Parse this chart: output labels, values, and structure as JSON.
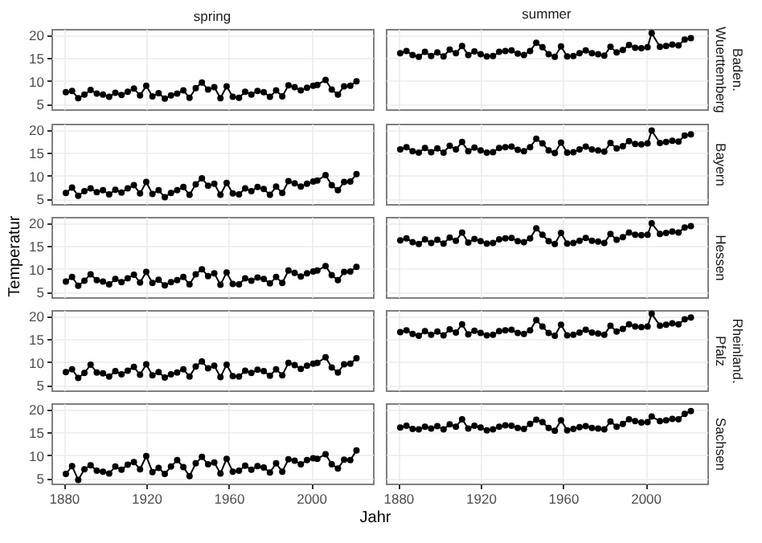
{
  "chart_data": [
    {
      "type": "line",
      "title": "spring",
      "color": "#000000",
      "marker": "circle",
      "grid": true,
      "tick_labels": "y",
      "xlim": [
        1874,
        2030
      ],
      "ylim": [
        3.8,
        21.3
      ],
      "xticks": [
        1880,
        1920,
        1960,
        2000
      ],
      "yticks": [
        5,
        10,
        15,
        20
      ],
      "x": [
        1881,
        1884,
        1887,
        1890,
        1893,
        1896,
        1899,
        1902,
        1905,
        1908,
        1911,
        1914,
        1917,
        1920,
        1923,
        1926,
        1929,
        1932,
        1935,
        1938,
        1941,
        1944,
        1947,
        1950,
        1953,
        1956,
        1959,
        1962,
        1965,
        1968,
        1971,
        1974,
        1977,
        1980,
        1983,
        1986,
        1989,
        1992,
        1995,
        1998,
        2001,
        2003,
        2007,
        2010,
        2013,
        2016,
        2019,
        2022
      ],
      "values": [
        7.5,
        7.8,
        6.2,
        7.0,
        8.0,
        7.2,
        7.0,
        6.5,
        7.4,
        6.9,
        7.6,
        8.3,
        6.8,
        8.9,
        6.6,
        7.3,
        6.1,
        6.8,
        7.2,
        7.9,
        6.3,
        8.4,
        9.6,
        8.1,
        8.6,
        6.2,
        8.8,
        6.5,
        6.3,
        7.6,
        7.0,
        7.8,
        7.5,
        6.5,
        7.9,
        6.6,
        9.0,
        8.6,
        7.9,
        8.5,
        8.9,
        9.1,
        10.2,
        8.1,
        7.0,
        8.8,
        8.9,
        9.9
      ]
    },
    {
      "type": "line",
      "title": "summer",
      "y2label": "Baden.Wuerttemberg",
      "color": "#000000",
      "marker": "circle",
      "grid": true,
      "tick_labels": false,
      "xlim": [
        1874,
        2030
      ],
      "ylim": [
        3.8,
        21.3
      ],
      "xticks": [
        1880,
        1920,
        1960,
        2000
      ],
      "yticks": [
        5,
        10,
        15,
        20
      ],
      "x": [
        1881,
        1884,
        1887,
        1890,
        1893,
        1896,
        1899,
        1902,
        1905,
        1908,
        1911,
        1914,
        1917,
        1920,
        1923,
        1926,
        1929,
        1932,
        1935,
        1938,
        1941,
        1944,
        1947,
        1950,
        1953,
        1956,
        1959,
        1962,
        1965,
        1968,
        1971,
        1974,
        1977,
        1980,
        1983,
        1986,
        1989,
        1992,
        1995,
        1998,
        2001,
        2003,
        2007,
        2010,
        2013,
        2016,
        2019,
        2022
      ],
      "values": [
        16.0,
        16.5,
        15.6,
        15.2,
        16.3,
        15.4,
        16.2,
        15.3,
        16.8,
        16.0,
        17.6,
        15.6,
        16.4,
        15.8,
        15.3,
        15.4,
        16.3,
        16.5,
        16.6,
        15.9,
        15.6,
        16.5,
        18.3,
        17.3,
        15.8,
        15.2,
        17.5,
        15.3,
        15.4,
        16.0,
        16.6,
        16.0,
        15.8,
        15.5,
        17.4,
        16.2,
        16.7,
        17.8,
        17.2,
        17.1,
        17.3,
        20.4,
        17.4,
        17.6,
        17.9,
        17.7,
        19.0,
        19.3
      ]
    },
    {
      "type": "line",
      "color": "#000000",
      "marker": "circle",
      "grid": true,
      "tick_labels": "y",
      "xlim": [
        1874,
        2030
      ],
      "ylim": [
        3.8,
        21.3
      ],
      "xticks": [
        1880,
        1920,
        1960,
        2000
      ],
      "yticks": [
        5,
        10,
        15,
        20
      ],
      "x": [
        1881,
        1884,
        1887,
        1890,
        1893,
        1896,
        1899,
        1902,
        1905,
        1908,
        1911,
        1914,
        1917,
        1920,
        1923,
        1926,
        1929,
        1932,
        1935,
        1938,
        1941,
        1944,
        1947,
        1950,
        1953,
        1956,
        1959,
        1962,
        1965,
        1968,
        1971,
        1974,
        1977,
        1980,
        1983,
        1986,
        1989,
        1992,
        1995,
        1998,
        2001,
        2003,
        2007,
        2010,
        2013,
        2016,
        2019,
        2022
      ],
      "values": [
        6.2,
        7.4,
        5.6,
        6.6,
        7.2,
        6.4,
        6.8,
        5.9,
        6.9,
        6.3,
        7.2,
        7.9,
        6.1,
        8.6,
        6.0,
        6.8,
        5.3,
        6.2,
        6.8,
        7.5,
        5.8,
        8.1,
        9.4,
        7.8,
        8.2,
        5.8,
        8.4,
        6.1,
        5.9,
        7.2,
        6.6,
        7.5,
        7.1,
        5.8,
        7.6,
        6.2,
        8.8,
        8.3,
        7.6,
        8.2,
        8.7,
        8.9,
        10.1,
        7.9,
        6.8,
        8.6,
        8.7,
        10.3
      ]
    },
    {
      "type": "line",
      "y2label": "Bayern",
      "color": "#000000",
      "marker": "circle",
      "grid": true,
      "tick_labels": false,
      "xlim": [
        1874,
        2030
      ],
      "ylim": [
        3.8,
        21.3
      ],
      "xticks": [
        1880,
        1920,
        1960,
        2000
      ],
      "yticks": [
        5,
        10,
        15,
        20
      ],
      "x": [
        1881,
        1884,
        1887,
        1890,
        1893,
        1896,
        1899,
        1902,
        1905,
        1908,
        1911,
        1914,
        1917,
        1920,
        1923,
        1926,
        1929,
        1932,
        1935,
        1938,
        1941,
        1944,
        1947,
        1950,
        1953,
        1956,
        1959,
        1962,
        1965,
        1968,
        1971,
        1974,
        1977,
        1980,
        1983,
        1986,
        1989,
        1992,
        1995,
        1998,
        2001,
        2003,
        2007,
        2010,
        2013,
        2016,
        2019,
        2022
      ],
      "values": [
        15.7,
        16.2,
        15.3,
        15.0,
        16.0,
        15.1,
        15.9,
        15.0,
        16.5,
        15.7,
        17.3,
        15.3,
        16.1,
        15.5,
        15.0,
        15.1,
        16.0,
        16.2,
        16.3,
        15.6,
        15.3,
        16.2,
        18.0,
        17.0,
        15.5,
        14.9,
        17.2,
        15.0,
        15.1,
        15.7,
        16.3,
        15.7,
        15.5,
        15.2,
        17.1,
        15.9,
        16.4,
        17.5,
        16.9,
        16.8,
        17.0,
        19.8,
        17.1,
        17.3,
        17.6,
        17.4,
        18.7,
        19.0
      ]
    },
    {
      "type": "line",
      "ylabel": "Temperatur",
      "color": "#000000",
      "marker": "circle",
      "grid": true,
      "tick_labels": "y",
      "xlim": [
        1874,
        2030
      ],
      "ylim": [
        3.8,
        21.3
      ],
      "xticks": [
        1880,
        1920,
        1960,
        2000
      ],
      "yticks": [
        5,
        10,
        15,
        20
      ],
      "x": [
        1881,
        1884,
        1887,
        1890,
        1893,
        1896,
        1899,
        1902,
        1905,
        1908,
        1911,
        1914,
        1917,
        1920,
        1923,
        1926,
        1929,
        1932,
        1935,
        1938,
        1941,
        1944,
        1947,
        1950,
        1953,
        1956,
        1959,
        1962,
        1965,
        1968,
        1971,
        1974,
        1977,
        1980,
        1983,
        1986,
        1989,
        1992,
        1995,
        1998,
        2001,
        2003,
        2007,
        2010,
        2013,
        2016,
        2019,
        2022
      ],
      "values": [
        7.2,
        8.2,
        6.3,
        7.4,
        8.8,
        7.5,
        7.2,
        6.6,
        7.8,
        7.1,
        7.9,
        8.7,
        7.0,
        9.3,
        6.9,
        7.6,
        6.4,
        7.1,
        7.5,
        8.2,
        6.6,
        8.8,
        9.9,
        8.4,
        9.0,
        6.5,
        9.2,
        6.7,
        6.6,
        7.9,
        7.4,
        8.1,
        7.8,
        6.8,
        8.2,
        6.9,
        9.6,
        9.1,
        8.3,
        9.0,
        9.4,
        9.6,
        10.6,
        8.6,
        7.5,
        9.3,
        9.4,
        10.4
      ]
    },
    {
      "type": "line",
      "y2label": "Hessen",
      "color": "#000000",
      "marker": "circle",
      "grid": true,
      "tick_labels": false,
      "xlim": [
        1874,
        2030
      ],
      "ylim": [
        3.8,
        21.3
      ],
      "xticks": [
        1880,
        1920,
        1960,
        2000
      ],
      "yticks": [
        5,
        10,
        15,
        20
      ],
      "x": [
        1881,
        1884,
        1887,
        1890,
        1893,
        1896,
        1899,
        1902,
        1905,
        1908,
        1911,
        1914,
        1917,
        1920,
        1923,
        1926,
        1929,
        1932,
        1935,
        1938,
        1941,
        1944,
        1947,
        1950,
        1953,
        1956,
        1959,
        1962,
        1965,
        1968,
        1971,
        1974,
        1977,
        1980,
        1983,
        1986,
        1989,
        1992,
        1995,
        1998,
        2001,
        2003,
        2007,
        2010,
        2013,
        2016,
        2019,
        2022
      ],
      "values": [
        16.2,
        16.6,
        15.8,
        15.4,
        16.4,
        15.6,
        16.3,
        15.5,
        16.8,
        16.1,
        17.9,
        15.7,
        16.5,
        16.0,
        15.5,
        15.6,
        16.4,
        16.6,
        16.7,
        16.0,
        15.8,
        16.6,
        18.8,
        17.4,
        16.0,
        15.4,
        17.8,
        15.5,
        15.6,
        16.1,
        16.7,
        16.1,
        15.9,
        15.6,
        17.6,
        16.3,
        16.9,
        17.9,
        17.4,
        17.3,
        17.4,
        19.9,
        17.6,
        17.8,
        18.1,
        17.9,
        19.0,
        19.3
      ]
    },
    {
      "type": "line",
      "color": "#000000",
      "marker": "circle",
      "grid": true,
      "tick_labels": "y",
      "xlim": [
        1874,
        2030
      ],
      "ylim": [
        3.8,
        21.3
      ],
      "xticks": [
        1880,
        1920,
        1960,
        2000
      ],
      "yticks": [
        5,
        10,
        15,
        20
      ],
      "x": [
        1881,
        1884,
        1887,
        1890,
        1893,
        1896,
        1899,
        1902,
        1905,
        1908,
        1911,
        1914,
        1917,
        1920,
        1923,
        1926,
        1929,
        1932,
        1935,
        1938,
        1941,
        1944,
        1947,
        1950,
        1953,
        1956,
        1959,
        1962,
        1965,
        1968,
        1971,
        1974,
        1977,
        1980,
        1983,
        1986,
        1989,
        1992,
        1995,
        1998,
        2001,
        2003,
        2007,
        2010,
        2013,
        2016,
        2019,
        2022
      ],
      "values": [
        7.8,
        8.4,
        6.5,
        7.6,
        9.4,
        7.7,
        7.5,
        6.8,
        8.0,
        7.3,
        8.1,
        8.9,
        7.2,
        9.5,
        7.1,
        7.8,
        6.6,
        7.3,
        7.7,
        8.4,
        6.8,
        9.0,
        10.1,
        8.6,
        9.2,
        6.7,
        9.4,
        6.9,
        6.8,
        8.1,
        7.6,
        8.3,
        8.0,
        7.0,
        8.4,
        7.1,
        9.8,
        9.3,
        8.5,
        9.2,
        9.6,
        9.8,
        11.0,
        8.8,
        7.7,
        9.5,
        9.6,
        10.8
      ]
    },
    {
      "type": "line",
      "y2label": "Rheinland.Pfalz",
      "color": "#000000",
      "marker": "circle",
      "grid": true,
      "tick_labels": false,
      "xlim": [
        1874,
        2030
      ],
      "ylim": [
        3.8,
        21.3
      ],
      "xticks": [
        1880,
        1920,
        1960,
        2000
      ],
      "yticks": [
        5,
        10,
        15,
        20
      ],
      "x": [
        1881,
        1884,
        1887,
        1890,
        1893,
        1896,
        1899,
        1902,
        1905,
        1908,
        1911,
        1914,
        1917,
        1920,
        1923,
        1926,
        1929,
        1932,
        1935,
        1938,
        1941,
        1944,
        1947,
        1950,
        1953,
        1956,
        1959,
        1962,
        1965,
        1968,
        1971,
        1974,
        1977,
        1980,
        1983,
        1986,
        1989,
        1992,
        1995,
        1998,
        2001,
        2003,
        2007,
        2010,
        2013,
        2016,
        2019,
        2022
      ],
      "values": [
        16.5,
        16.9,
        16.1,
        15.7,
        16.7,
        15.9,
        16.6,
        15.8,
        17.1,
        16.4,
        18.2,
        16.0,
        16.8,
        16.3,
        15.8,
        15.9,
        16.7,
        16.9,
        17.0,
        16.3,
        16.1,
        16.9,
        19.1,
        17.7,
        16.3,
        15.7,
        18.1,
        15.8,
        15.9,
        16.4,
        17.0,
        16.4,
        16.2,
        15.9,
        17.9,
        16.6,
        17.2,
        18.2,
        17.7,
        17.6,
        17.7,
        20.5,
        17.9,
        18.1,
        18.4,
        18.2,
        19.3,
        19.7
      ]
    },
    {
      "type": "line",
      "xlabel": "Jahr",
      "color": "#000000",
      "marker": "circle",
      "grid": true,
      "xlim": [
        1874,
        2030
      ],
      "ylim": [
        3.8,
        21.3
      ],
      "xticks": [
        1880,
        1920,
        1960,
        2000
      ],
      "yticks": [
        5,
        10,
        15,
        20
      ],
      "x": [
        1881,
        1884,
        1887,
        1890,
        1893,
        1896,
        1899,
        1902,
        1905,
        1908,
        1911,
        1914,
        1917,
        1920,
        1923,
        1926,
        1929,
        1932,
        1935,
        1938,
        1941,
        1944,
        1947,
        1950,
        1953,
        1956,
        1959,
        1962,
        1965,
        1968,
        1971,
        1974,
        1977,
        1980,
        1983,
        1986,
        1989,
        1992,
        1995,
        1998,
        2001,
        2003,
        2007,
        2010,
        2013,
        2016,
        2019,
        2022
      ],
      "values": [
        5.9,
        7.6,
        4.6,
        6.9,
        7.8,
        6.6,
        6.4,
        6.0,
        7.5,
        6.8,
        7.9,
        8.5,
        6.9,
        9.8,
        6.3,
        7.2,
        5.9,
        7.5,
        8.9,
        7.4,
        5.4,
        8.2,
        9.6,
        8.0,
        8.4,
        6.0,
        9.2,
        6.4,
        6.6,
        7.7,
        6.8,
        7.6,
        7.3,
        6.2,
        8.2,
        6.4,
        9.1,
        8.8,
        8.0,
        8.9,
        9.3,
        9.2,
        10.2,
        8.0,
        7.1,
        9.0,
        8.9,
        11.0
      ]
    },
    {
      "type": "line",
      "y2label": "Sachsen",
      "color": "#000000",
      "marker": "circle",
      "grid": true,
      "tick_labels": "x",
      "xlim": [
        1874,
        2030
      ],
      "ylim": [
        3.8,
        21.3
      ],
      "xticks": [
        1880,
        1920,
        1960,
        2000
      ],
      "yticks": [
        5,
        10,
        15,
        20
      ],
      "x": [
        1881,
        1884,
        1887,
        1890,
        1893,
        1896,
        1899,
        1902,
        1905,
        1908,
        1911,
        1914,
        1917,
        1920,
        1923,
        1926,
        1929,
        1932,
        1935,
        1938,
        1941,
        1944,
        1947,
        1950,
        1953,
        1956,
        1959,
        1962,
        1965,
        1968,
        1971,
        1974,
        1977,
        1980,
        1983,
        1986,
        1989,
        1992,
        1995,
        1998,
        2001,
        2003,
        2007,
        2010,
        2013,
        2016,
        2019,
        2022
      ],
      "values": [
        16.0,
        16.4,
        15.7,
        15.6,
        16.2,
        15.8,
        16.3,
        15.6,
        16.7,
        16.2,
        17.8,
        15.8,
        16.4,
        16.0,
        15.4,
        15.6,
        16.2,
        16.5,
        16.4,
        15.9,
        15.7,
        16.8,
        17.7,
        17.2,
        15.9,
        15.3,
        17.6,
        15.4,
        15.7,
        16.1,
        16.3,
        15.9,
        15.8,
        15.6,
        17.3,
        16.2,
        16.8,
        17.8,
        17.4,
        17.1,
        17.2,
        18.4,
        17.4,
        17.6,
        17.9,
        17.8,
        19.0,
        19.6
      ]
    }
  ]
}
